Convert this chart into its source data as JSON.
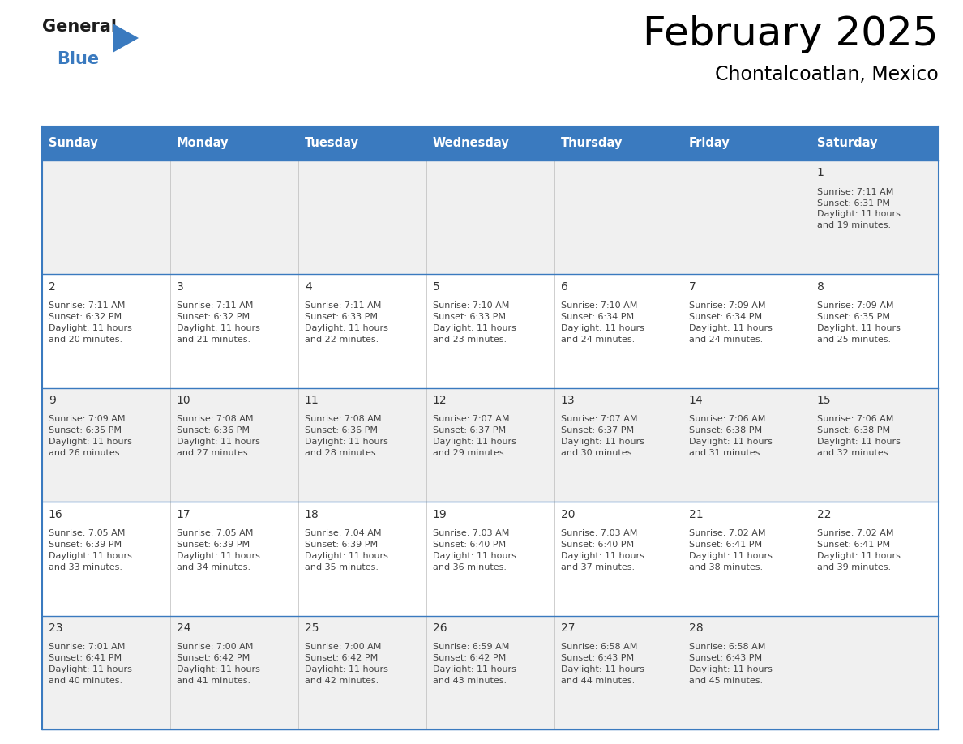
{
  "title": "February 2025",
  "subtitle": "Chontalcoatlan, Mexico",
  "header_color": "#3a7abf",
  "header_text_color": "#ffffff",
  "cell_bg_even": "#f0f0f0",
  "cell_bg_odd": "#ffffff",
  "day_number_color": "#333333",
  "border_color": "#3a7abf",
  "text_color": "#444444",
  "days_of_week": [
    "Sunday",
    "Monday",
    "Tuesday",
    "Wednesday",
    "Thursday",
    "Friday",
    "Saturday"
  ],
  "calendar_data": [
    [
      null,
      null,
      null,
      null,
      null,
      null,
      {
        "day": 1,
        "sunrise": "7:11 AM",
        "sunset": "6:31 PM",
        "daylight": "11 hours and 19 minutes."
      }
    ],
    [
      {
        "day": 2,
        "sunrise": "7:11 AM",
        "sunset": "6:32 PM",
        "daylight": "11 hours and 20 minutes."
      },
      {
        "day": 3,
        "sunrise": "7:11 AM",
        "sunset": "6:32 PM",
        "daylight": "11 hours and 21 minutes."
      },
      {
        "day": 4,
        "sunrise": "7:11 AM",
        "sunset": "6:33 PM",
        "daylight": "11 hours and 22 minutes."
      },
      {
        "day": 5,
        "sunrise": "7:10 AM",
        "sunset": "6:33 PM",
        "daylight": "11 hours and 23 minutes."
      },
      {
        "day": 6,
        "sunrise": "7:10 AM",
        "sunset": "6:34 PM",
        "daylight": "11 hours and 24 minutes."
      },
      {
        "day": 7,
        "sunrise": "7:09 AM",
        "sunset": "6:34 PM",
        "daylight": "11 hours and 24 minutes."
      },
      {
        "day": 8,
        "sunrise": "7:09 AM",
        "sunset": "6:35 PM",
        "daylight": "11 hours and 25 minutes."
      }
    ],
    [
      {
        "day": 9,
        "sunrise": "7:09 AM",
        "sunset": "6:35 PM",
        "daylight": "11 hours and 26 minutes."
      },
      {
        "day": 10,
        "sunrise": "7:08 AM",
        "sunset": "6:36 PM",
        "daylight": "11 hours and 27 minutes."
      },
      {
        "day": 11,
        "sunrise": "7:08 AM",
        "sunset": "6:36 PM",
        "daylight": "11 hours and 28 minutes."
      },
      {
        "day": 12,
        "sunrise": "7:07 AM",
        "sunset": "6:37 PM",
        "daylight": "11 hours and 29 minutes."
      },
      {
        "day": 13,
        "sunrise": "7:07 AM",
        "sunset": "6:37 PM",
        "daylight": "11 hours and 30 minutes."
      },
      {
        "day": 14,
        "sunrise": "7:06 AM",
        "sunset": "6:38 PM",
        "daylight": "11 hours and 31 minutes."
      },
      {
        "day": 15,
        "sunrise": "7:06 AM",
        "sunset": "6:38 PM",
        "daylight": "11 hours and 32 minutes."
      }
    ],
    [
      {
        "day": 16,
        "sunrise": "7:05 AM",
        "sunset": "6:39 PM",
        "daylight": "11 hours and 33 minutes."
      },
      {
        "day": 17,
        "sunrise": "7:05 AM",
        "sunset": "6:39 PM",
        "daylight": "11 hours and 34 minutes."
      },
      {
        "day": 18,
        "sunrise": "7:04 AM",
        "sunset": "6:39 PM",
        "daylight": "11 hours and 35 minutes."
      },
      {
        "day": 19,
        "sunrise": "7:03 AM",
        "sunset": "6:40 PM",
        "daylight": "11 hours and 36 minutes."
      },
      {
        "day": 20,
        "sunrise": "7:03 AM",
        "sunset": "6:40 PM",
        "daylight": "11 hours and 37 minutes."
      },
      {
        "day": 21,
        "sunrise": "7:02 AM",
        "sunset": "6:41 PM",
        "daylight": "11 hours and 38 minutes."
      },
      {
        "day": 22,
        "sunrise": "7:02 AM",
        "sunset": "6:41 PM",
        "daylight": "11 hours and 39 minutes."
      }
    ],
    [
      {
        "day": 23,
        "sunrise": "7:01 AM",
        "sunset": "6:41 PM",
        "daylight": "11 hours and 40 minutes."
      },
      {
        "day": 24,
        "sunrise": "7:00 AM",
        "sunset": "6:42 PM",
        "daylight": "11 hours and 41 minutes."
      },
      {
        "day": 25,
        "sunrise": "7:00 AM",
        "sunset": "6:42 PM",
        "daylight": "11 hours and 42 minutes."
      },
      {
        "day": 26,
        "sunrise": "6:59 AM",
        "sunset": "6:42 PM",
        "daylight": "11 hours and 43 minutes."
      },
      {
        "day": 27,
        "sunrise": "6:58 AM",
        "sunset": "6:43 PM",
        "daylight": "11 hours and 44 minutes."
      },
      {
        "day": 28,
        "sunrise": "6:58 AM",
        "sunset": "6:43 PM",
        "daylight": "11 hours and 45 minutes."
      },
      null
    ]
  ]
}
